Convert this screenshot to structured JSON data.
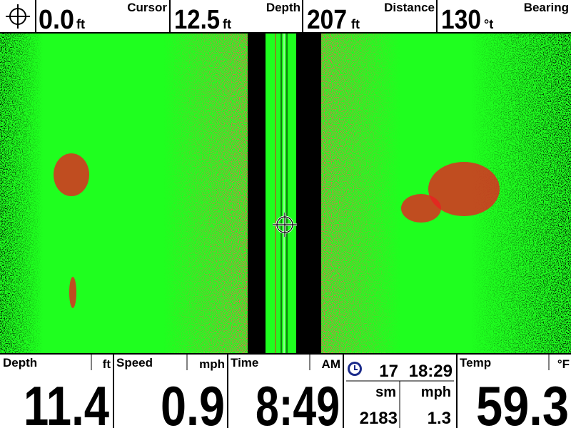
{
  "top_bar": {
    "fields": [
      {
        "value": "0.0",
        "unit": "ft",
        "label": "Cursor"
      },
      {
        "value": "12.5",
        "unit": "ft",
        "label": "Depth"
      },
      {
        "value": "207",
        "unit": "ft",
        "label": "Distance"
      },
      {
        "value": "130",
        "unit": "°t",
        "label": "Bearing"
      }
    ]
  },
  "bottom_bar": {
    "depth": {
      "label": "Depth",
      "unit": "ft",
      "value": "11.4"
    },
    "speed": {
      "label": "Speed",
      "unit": "mph",
      "value": "0.9"
    },
    "time": {
      "label": "Time",
      "unit": "AM",
      "value": "8:49"
    },
    "trip": {
      "count": "17",
      "elapsed": "18:29",
      "distance_unit": "sm",
      "speed_unit": "mph",
      "distance": "2183",
      "speed": "1.3"
    },
    "temp": {
      "label": "Temp",
      "unit": "°F",
      "value": "59.3"
    }
  }
}
